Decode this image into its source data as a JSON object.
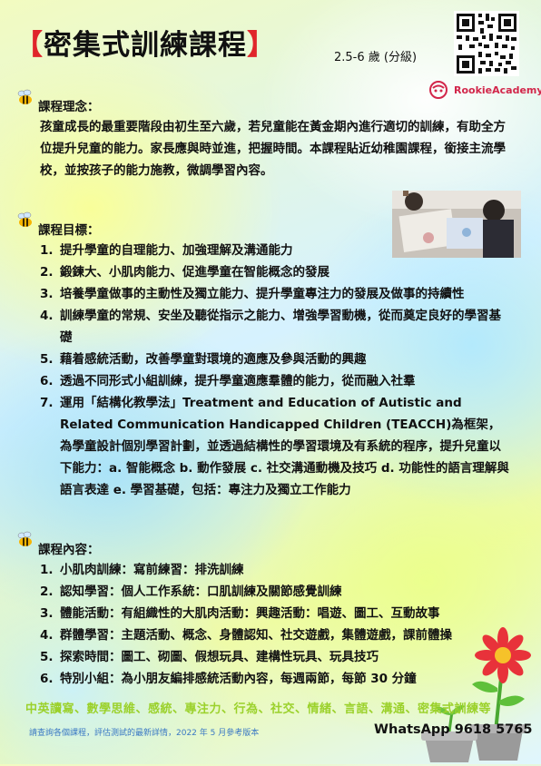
{
  "header": {
    "bracket_open": "【",
    "title": "密集式訓練課程",
    "bracket_close": "】",
    "age": "2.5-6 歲 (分級)",
    "logo_text": "RookieAcademy"
  },
  "philosophy": {
    "heading": "課程理念：",
    "text": "孩童成長的最重要階段由初生至六歲，若兒童能在黃金期內進行適切的訓練，有助全方位提升兒童的能力。家長應與時並進，把握時間。本課程貼近幼稚園課程，銜接主流學校，並按孩子的能力施教，微調學習內容。"
  },
  "goals": {
    "heading": "課程目標：",
    "items": [
      {
        "num": "1.",
        "text": "提升學童的自理能力、加強理解及溝通能力"
      },
      {
        "num": "2.",
        "text": "鍛鍊大、小肌肉能力、促進學童在智能概念的發展"
      },
      {
        "num": "3.",
        "text": "培養學童做事的主動性及獨立能力、提升學童專注力的發展及做事的持續性"
      },
      {
        "num": "4.",
        "text": "訓練學童的常規、安坐及聽從指示之能力、增強學習動機，從而奠定良好的學習基礎"
      },
      {
        "num": "5.",
        "text": "藉着感統活動，改善學童對環境的適應及參與活動的興趣"
      },
      {
        "num": "6.",
        "text": "透過不同形式小組訓練，提升學童適應羣體的能力，從而融入社羣"
      },
      {
        "num": "7.",
        "text": "運用「結構化教學法」Treatment and Education of Autistic and Related Communication Handicapped Children (TEACCH)為框架，為學童設計個別學習計劃，並透過結構性的學習環境及有系統的程序，提升兒童以下能力：a. 智能概念 b. 動作發展 c. 社交溝通動機及技巧 d. 功能性的語言理解與語言表達 e. 學習基礎，包括：專注力及獨立工作能力"
      }
    ]
  },
  "contents": {
    "heading": "課程內容：",
    "items": [
      {
        "num": "1.",
        "text": "小肌肉訓練：寫前練習：排洗訓練"
      },
      {
        "num": "2.",
        "text": "認知學習：個人工作系統：口肌訓練及關節感覺訓練"
      },
      {
        "num": "3.",
        "text": "體能活動：有組織性的大肌肉活動：興趣活動：唱遊、圖工、互動故事"
      },
      {
        "num": "4.",
        "text": "群體學習：主題活動、概念、身體認知、社交遊戲，集體遊戲，課前體操"
      },
      {
        "num": "5.",
        "text": "探索時間：圖工、砌圖、假想玩具、建構性玩具、玩具技巧"
      },
      {
        "num": "6.",
        "text": "特別小組：為小朋友編排感統活動內容，每週兩節，每節 30 分鐘"
      }
    ]
  },
  "footer": {
    "tags": "中英讀寫、數學思維、感統、專注力、行為、社交、情緒、言語、溝通、密集式訓練等",
    "note": "請查詢各個課程，評估測試的最新詳情，2022 年 5 月參考版本",
    "whatsapp": "WhatsApp 9618 5765"
  },
  "colors": {
    "title_bracket": "#e0252b",
    "footer_green": "#9bd12b",
    "footer_note": "#3a78c4",
    "logo": "#d2264a"
  }
}
